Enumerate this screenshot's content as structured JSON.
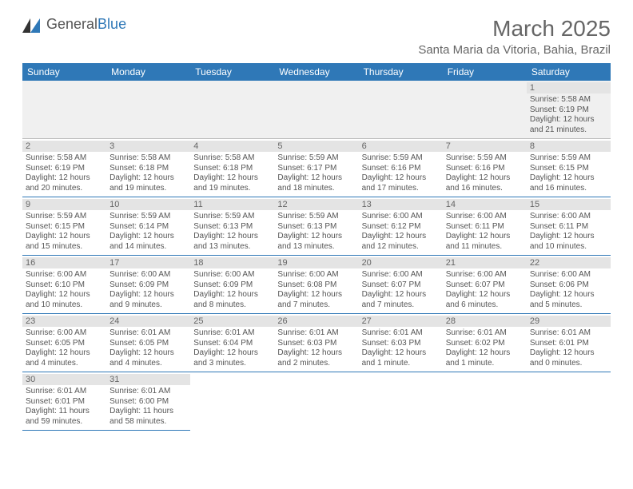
{
  "logo": {
    "general": "General",
    "blue": "Blue"
  },
  "title": "March 2025",
  "location": "Santa Maria da Vitoria, Bahia, Brazil",
  "style": {
    "header_bg": "#2f78b7",
    "header_fg": "#ffffff",
    "border_color": "#2f78b7",
    "alt_row_bg": "#f0f0f0",
    "daynum_bg": "#e4e4e4",
    "body_text": "#555555",
    "title_color": "#666666",
    "header_fontsize": 12,
    "title_fontsize": 28,
    "subtitle_fontsize": 15,
    "daynum_fontsize": 11,
    "info_fontsize": 10
  },
  "columns": [
    "Sunday",
    "Monday",
    "Tuesday",
    "Wednesday",
    "Thursday",
    "Friday",
    "Saturday"
  ],
  "weeks": [
    [
      null,
      null,
      null,
      null,
      null,
      null,
      {
        "n": "1",
        "sr": "5:58 AM",
        "ss": "6:19 PM",
        "dl": "12 hours and 21 minutes."
      }
    ],
    [
      {
        "n": "2",
        "sr": "5:58 AM",
        "ss": "6:19 PM",
        "dl": "12 hours and 20 minutes."
      },
      {
        "n": "3",
        "sr": "5:58 AM",
        "ss": "6:18 PM",
        "dl": "12 hours and 19 minutes."
      },
      {
        "n": "4",
        "sr": "5:58 AM",
        "ss": "6:18 PM",
        "dl": "12 hours and 19 minutes."
      },
      {
        "n": "5",
        "sr": "5:59 AM",
        "ss": "6:17 PM",
        "dl": "12 hours and 18 minutes."
      },
      {
        "n": "6",
        "sr": "5:59 AM",
        "ss": "6:16 PM",
        "dl": "12 hours and 17 minutes."
      },
      {
        "n": "7",
        "sr": "5:59 AM",
        "ss": "6:16 PM",
        "dl": "12 hours and 16 minutes."
      },
      {
        "n": "8",
        "sr": "5:59 AM",
        "ss": "6:15 PM",
        "dl": "12 hours and 16 minutes."
      }
    ],
    [
      {
        "n": "9",
        "sr": "5:59 AM",
        "ss": "6:15 PM",
        "dl": "12 hours and 15 minutes."
      },
      {
        "n": "10",
        "sr": "5:59 AM",
        "ss": "6:14 PM",
        "dl": "12 hours and 14 minutes."
      },
      {
        "n": "11",
        "sr": "5:59 AM",
        "ss": "6:13 PM",
        "dl": "12 hours and 13 minutes."
      },
      {
        "n": "12",
        "sr": "5:59 AM",
        "ss": "6:13 PM",
        "dl": "12 hours and 13 minutes."
      },
      {
        "n": "13",
        "sr": "6:00 AM",
        "ss": "6:12 PM",
        "dl": "12 hours and 12 minutes."
      },
      {
        "n": "14",
        "sr": "6:00 AM",
        "ss": "6:11 PM",
        "dl": "12 hours and 11 minutes."
      },
      {
        "n": "15",
        "sr": "6:00 AM",
        "ss": "6:11 PM",
        "dl": "12 hours and 10 minutes."
      }
    ],
    [
      {
        "n": "16",
        "sr": "6:00 AM",
        "ss": "6:10 PM",
        "dl": "12 hours and 10 minutes."
      },
      {
        "n": "17",
        "sr": "6:00 AM",
        "ss": "6:09 PM",
        "dl": "12 hours and 9 minutes."
      },
      {
        "n": "18",
        "sr": "6:00 AM",
        "ss": "6:09 PM",
        "dl": "12 hours and 8 minutes."
      },
      {
        "n": "19",
        "sr": "6:00 AM",
        "ss": "6:08 PM",
        "dl": "12 hours and 7 minutes."
      },
      {
        "n": "20",
        "sr": "6:00 AM",
        "ss": "6:07 PM",
        "dl": "12 hours and 7 minutes."
      },
      {
        "n": "21",
        "sr": "6:00 AM",
        "ss": "6:07 PM",
        "dl": "12 hours and 6 minutes."
      },
      {
        "n": "22",
        "sr": "6:00 AM",
        "ss": "6:06 PM",
        "dl": "12 hours and 5 minutes."
      }
    ],
    [
      {
        "n": "23",
        "sr": "6:00 AM",
        "ss": "6:05 PM",
        "dl": "12 hours and 4 minutes."
      },
      {
        "n": "24",
        "sr": "6:01 AM",
        "ss": "6:05 PM",
        "dl": "12 hours and 4 minutes."
      },
      {
        "n": "25",
        "sr": "6:01 AM",
        "ss": "6:04 PM",
        "dl": "12 hours and 3 minutes."
      },
      {
        "n": "26",
        "sr": "6:01 AM",
        "ss": "6:03 PM",
        "dl": "12 hours and 2 minutes."
      },
      {
        "n": "27",
        "sr": "6:01 AM",
        "ss": "6:03 PM",
        "dl": "12 hours and 1 minute."
      },
      {
        "n": "28",
        "sr": "6:01 AM",
        "ss": "6:02 PM",
        "dl": "12 hours and 1 minute."
      },
      {
        "n": "29",
        "sr": "6:01 AM",
        "ss": "6:01 PM",
        "dl": "12 hours and 0 minutes."
      }
    ],
    [
      {
        "n": "30",
        "sr": "6:01 AM",
        "ss": "6:01 PM",
        "dl": "11 hours and 59 minutes."
      },
      {
        "n": "31",
        "sr": "6:01 AM",
        "ss": "6:00 PM",
        "dl": "11 hours and 58 minutes."
      },
      null,
      null,
      null,
      null,
      null
    ]
  ],
  "labels": {
    "sunrise": "Sunrise: ",
    "sunset": "Sunset: ",
    "daylight": "Daylight: "
  }
}
